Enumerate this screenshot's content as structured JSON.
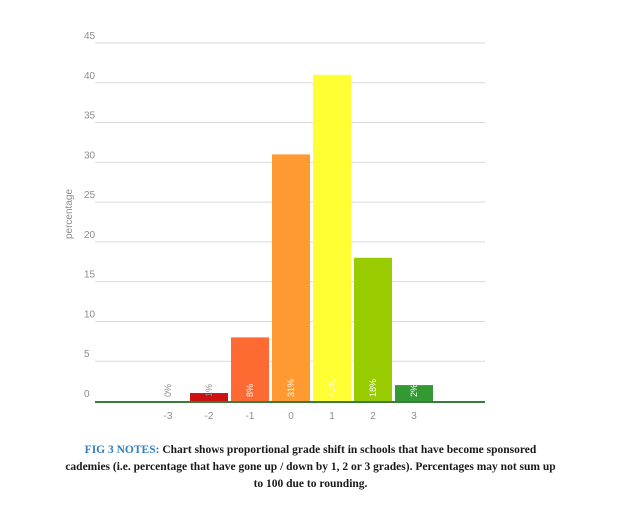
{
  "chart_data": {
    "type": "bar",
    "ylabel": "percentage",
    "xlabel": "",
    "ylim": [
      0,
      45
    ],
    "yticks": [
      0,
      5,
      10,
      15,
      20,
      25,
      30,
      35,
      40,
      45
    ],
    "grid": true,
    "categories": [
      "-3",
      "-2",
      "-1",
      "0",
      "1",
      "2",
      "3"
    ],
    "values": [
      0,
      1,
      8,
      31,
      41,
      18,
      2
    ],
    "data_labels": [
      "0%",
      "1%",
      "8%",
      "31%",
      "41%",
      "18%",
      "2%"
    ],
    "colors": [
      "#cc1111",
      "#cc1111",
      "#ff6a33",
      "#ff9a33",
      "#ffff33",
      "#99cc00",
      "#339933"
    ]
  },
  "caption": {
    "lead": "FIG 3 NOTES:",
    "line1_rest": " Chart shows proportional grade shift in schools that have become sponsored",
    "line2": "cademies (i.e. percentage that have gone up / down by 1, 2 or 3 grades). Percentages may not sum up",
    "line3": "to 100 due to rounding."
  }
}
